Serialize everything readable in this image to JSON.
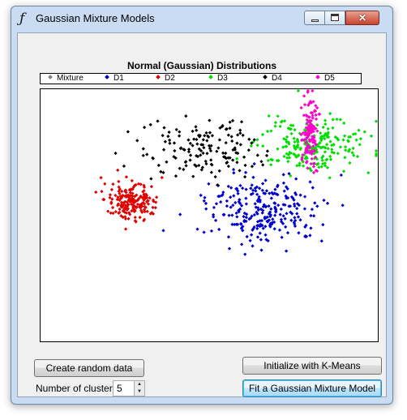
{
  "window": {
    "title": "Gaussian Mixture Models",
    "icon": "function-f-icon",
    "controls": [
      "minimize",
      "maximize",
      "close"
    ]
  },
  "chart_data": {
    "type": "scatter",
    "title": "Normal (Gaussian) Distributions",
    "xlabel": "",
    "ylabel": "",
    "grid": false,
    "legend_placement": "top",
    "series": [
      {
        "name": "Mixture",
        "color": "#808080",
        "points": []
      },
      {
        "name": "D1",
        "color": "#0000cc",
        "points": [],
        "clusters": [
          {
            "center": [
              0.66,
              0.48
            ],
            "spread": [
              0.085,
              0.07
            ],
            "count": 260
          }
        ]
      },
      {
        "name": "D2",
        "color": "#e00000",
        "points": [],
        "clusters": [
          {
            "center": [
              0.27,
              0.44
            ],
            "spread": [
              0.04,
              0.035
            ],
            "count": 190
          }
        ]
      },
      {
        "name": "D3",
        "color": "#00dd00",
        "points": [],
        "clusters": [
          {
            "center": [
              0.81,
              0.22
            ],
            "spread": [
              0.08,
              0.055
            ],
            "count": 230
          }
        ]
      },
      {
        "name": "D4",
        "color": "#000000",
        "points": [],
        "clusters": [
          {
            "center": [
              0.47,
              0.24
            ],
            "spread": [
              0.085,
              0.06
            ],
            "count": 150
          }
        ]
      },
      {
        "name": "D5",
        "color": "#ff00cc",
        "points": [],
        "clusters": [
          {
            "center": [
              0.8,
              0.17
            ],
            "spread": [
              0.012,
              0.075
            ],
            "count": 130
          }
        ]
      }
    ]
  },
  "buttons": {
    "create_random": "Create random data",
    "init_kmeans": "Initialize with K-Means",
    "fit_gmm": "Fit a Gaussian Mixture Model"
  },
  "clusters": {
    "label": "Number of clusters:",
    "value": "5"
  }
}
